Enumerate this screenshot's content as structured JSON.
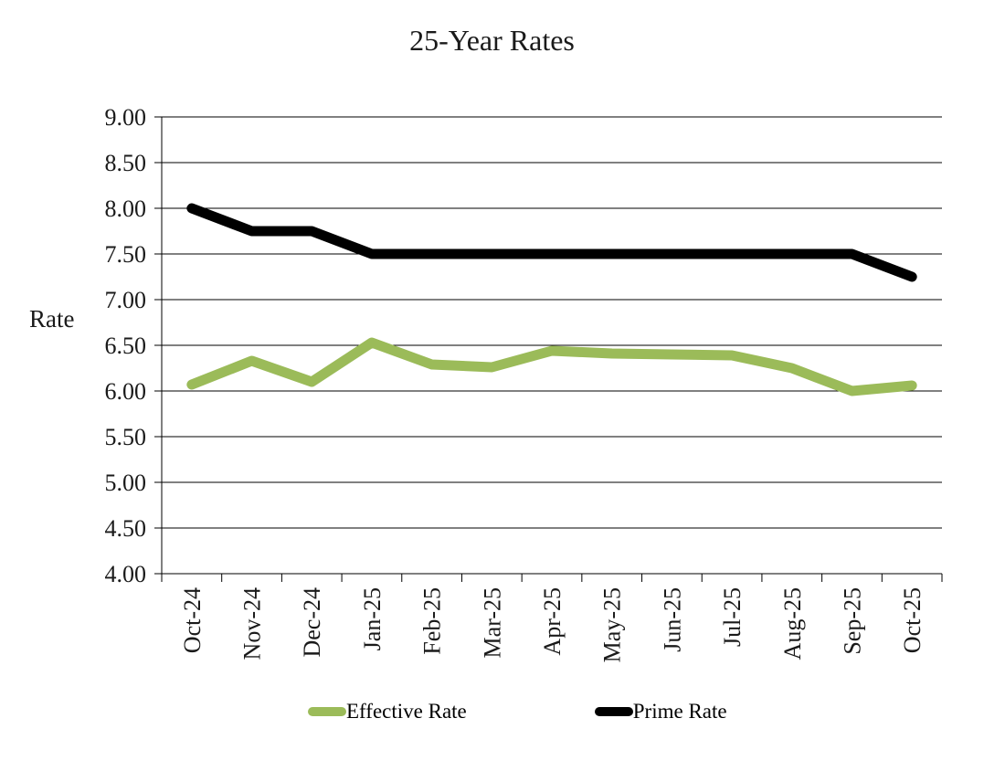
{
  "chart_data": {
    "type": "line",
    "title": "25-Year Rates",
    "xlabel": "",
    "ylabel": "Rate",
    "categories": [
      "Oct-24",
      "Nov-24",
      "Dec-24",
      "Jan-25",
      "Feb-25",
      "Mar-25",
      "Apr-25",
      "May-25",
      "Jun-25",
      "Jul-25",
      "Aug-25",
      "Sep-25",
      "Oct-25"
    ],
    "series": [
      {
        "name": "Effective Rate",
        "color": "#9BBB59",
        "values": [
          6.07,
          6.33,
          6.1,
          6.53,
          6.29,
          6.26,
          6.44,
          6.41,
          6.4,
          6.39,
          6.25,
          6.0,
          6.06
        ]
      },
      {
        "name": "Prime Rate",
        "color": "#000000",
        "values": [
          8.0,
          7.75,
          7.75,
          7.5,
          7.5,
          7.5,
          7.5,
          7.5,
          7.5,
          7.5,
          7.5,
          7.5,
          7.25
        ]
      }
    ],
    "ylim": [
      4.0,
      9.0
    ],
    "ytick_step": 0.5,
    "yticks": [
      "4.00",
      "4.50",
      "5.00",
      "5.50",
      "6.00",
      "6.50",
      "7.00",
      "7.50",
      "8.00",
      "8.50",
      "9.00"
    ],
    "grid": "horizontal",
    "legend_position": "bottom",
    "axis_color": "#000000",
    "gridline_color": "#000000"
  }
}
